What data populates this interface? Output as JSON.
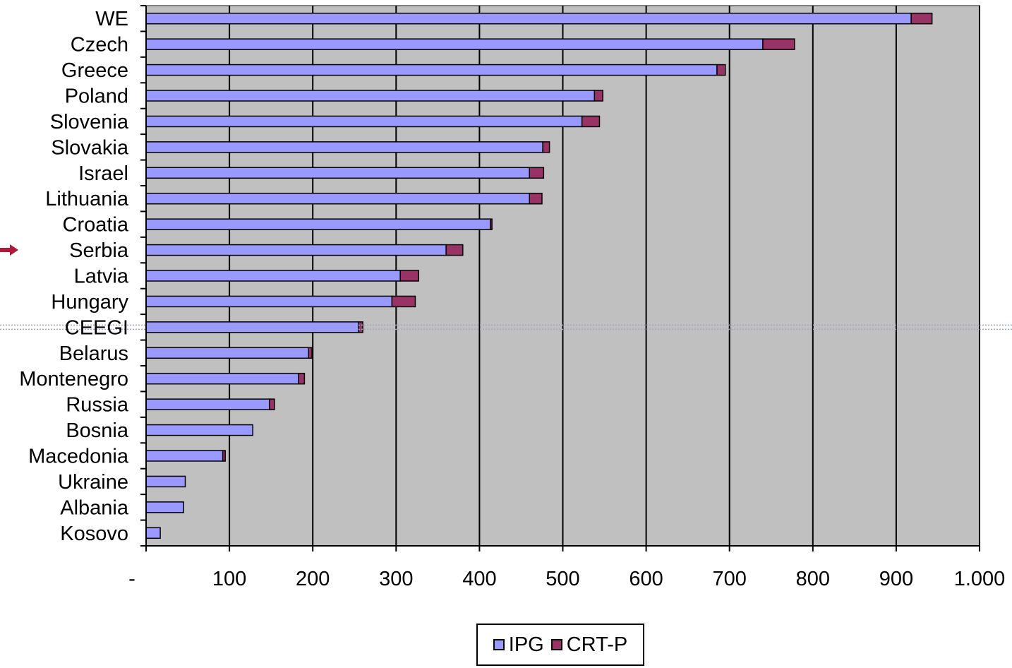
{
  "chart_data": {
    "type": "bar",
    "orientation": "horizontal",
    "stacked": true,
    "categories": [
      "WE",
      "Czech",
      "Greece",
      "Poland",
      "Slovenia",
      "Slovakia",
      "Israel",
      "Lithuania",
      "Croatia",
      "Serbia",
      "Latvia",
      "Hungary",
      "CEEGI",
      "Belarus",
      "Montenegro",
      "Russia",
      "Bosnia",
      "Macedonia",
      "Ukraine",
      "Albania",
      "Kosovo"
    ],
    "series": [
      {
        "name": "IPG",
        "color": "#9999ff",
        "values": [
          918,
          740,
          685,
          538,
          523,
          476,
          460,
          460,
          413,
          360,
          305,
          295,
          255,
          195,
          183,
          148,
          128,
          92,
          47,
          45,
          17
        ]
      },
      {
        "name": "CRT-P",
        "color": "#993366",
        "values": [
          25,
          38,
          10,
          10,
          21,
          8,
          17,
          15,
          2,
          20,
          22,
          28,
          5,
          4,
          7,
          6,
          0,
          3,
          0,
          0,
          0
        ]
      }
    ],
    "xlim": [
      0,
      1000
    ],
    "xticks": [
      "-",
      "100",
      "200",
      "300",
      "400",
      "500",
      "600",
      "700",
      "800",
      "900",
      "1.000"
    ],
    "xlabel": "",
    "ylabel": "",
    "grid": true,
    "plot_background": "#c0c0c0",
    "reference_line_at": "CEEGI",
    "highlighted_category": "Serbia",
    "legend_position": "bottom"
  },
  "legend": {
    "ipg_label": "IPG",
    "crtp_label": "CRT-P"
  },
  "icons": {
    "marker": "arrow-right-icon"
  }
}
